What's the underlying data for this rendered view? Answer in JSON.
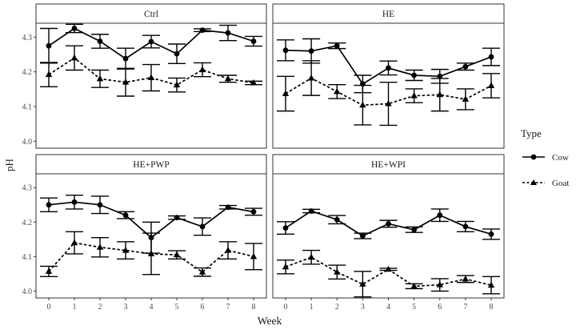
{
  "chart_data": {
    "type": "line",
    "xlabel": "Week",
    "ylabel": "pH",
    "x": [
      0,
      1,
      2,
      3,
      4,
      5,
      6,
      7,
      8
    ],
    "y_ticks": [
      4.0,
      4.1,
      4.2,
      4.3
    ],
    "y_tick_labels": [
      "4.0",
      "4.1",
      "4.2",
      "4.3"
    ],
    "ylim": [
      3.98,
      4.34
    ],
    "grid": false,
    "legend": {
      "title": "Type",
      "position": "right",
      "entries": [
        {
          "name": "Cow",
          "marker": "circle",
          "line": "solid"
        },
        {
          "name": "Goat",
          "marker": "triangle",
          "line": "dashed"
        }
      ]
    },
    "panels": [
      {
        "title": "Ctrl",
        "series": [
          {
            "name": "Cow",
            "values": [
              4.275,
              4.325,
              4.288,
              4.238,
              4.287,
              4.252,
              4.32,
              4.312,
              4.288
            ],
            "errors": [
              0.05,
              0.012,
              0.02,
              0.03,
              0.018,
              0.028,
              0.004,
              0.022,
              0.014
            ]
          },
          {
            "name": "Goat",
            "values": [
              4.192,
              4.24,
              4.18,
              4.17,
              4.183,
              4.162,
              4.206,
              4.18,
              4.168
            ],
            "errors": [
              0.035,
              0.035,
              0.025,
              0.04,
              0.038,
              0.02,
              0.02,
              0.01,
              0.005
            ]
          }
        ]
      },
      {
        "title": "HE",
        "series": [
          {
            "name": "Cow",
            "values": [
              4.262,
              4.26,
              4.275,
              4.165,
              4.211,
              4.19,
              4.187,
              4.215,
              4.243
            ],
            "errors": [
              0.03,
              0.035,
              0.008,
              0.025,
              0.02,
              0.015,
              0.02,
              0.01,
              0.025
            ]
          },
          {
            "name": "Goat",
            "values": [
              4.137,
              4.182,
              4.143,
              4.104,
              4.108,
              4.131,
              4.134,
              4.121,
              4.16
            ],
            "errors": [
              0.05,
              0.05,
              0.02,
              0.057,
              0.062,
              0.02,
              0.047,
              0.03,
              0.035
            ]
          }
        ]
      },
      {
        "title": "HE+PWP",
        "series": [
          {
            "name": "Cow",
            "values": [
              4.25,
              4.258,
              4.25,
              4.22,
              4.155,
              4.213,
              4.187,
              4.243,
              4.23
            ],
            "errors": [
              0.02,
              0.02,
              0.025,
              0.01,
              0.045,
              0.005,
              0.025,
              0.005,
              0.01
            ]
          },
          {
            "name": "Goat",
            "values": [
              4.057,
              4.14,
              4.127,
              4.118,
              4.108,
              4.105,
              4.055,
              4.118,
              4.1
            ],
            "errors": [
              0.015,
              0.032,
              0.028,
              0.025,
              0.06,
              0.012,
              0.012,
              0.025,
              0.038
            ]
          }
        ]
      },
      {
        "title": "HE+WPI",
        "series": [
          {
            "name": "Cow",
            "values": [
              4.183,
              4.232,
              4.207,
              4.16,
              4.195,
              4.178,
              4.22,
              4.187,
              4.165
            ],
            "errors": [
              0.018,
              0.005,
              0.012,
              0.008,
              0.01,
              0.008,
              0.018,
              0.015,
              0.015
            ]
          },
          {
            "name": "Goat",
            "values": [
              4.07,
              4.098,
              4.055,
              4.02,
              4.063,
              4.014,
              4.018,
              4.035,
              4.017
            ],
            "errors": [
              0.02,
              0.02,
              0.02,
              0.037,
              0.003,
              0.007,
              0.018,
              0.01,
              0.025
            ]
          }
        ]
      }
    ]
  }
}
